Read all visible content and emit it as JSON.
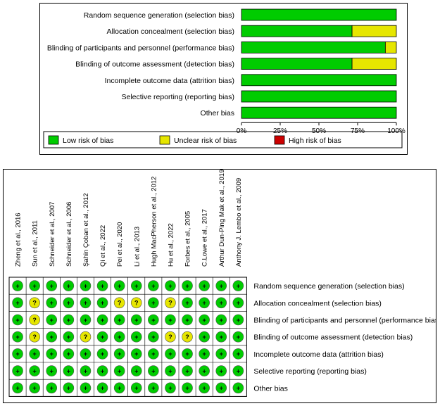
{
  "chart_data": [
    {
      "type": "bar",
      "stacked": true,
      "orientation": "horizontal",
      "title": "",
      "categories": [
        "Random sequence generation (selection bias)",
        "Allocation concealment (selection bias)",
        "Blinding of participants and personnel (performance bias)",
        "Blinding of outcome assessment (detection bias)",
        "Incomplete outcome data (attrition bias)",
        "Selective reporting (reporting bias)",
        "Other bias"
      ],
      "series": [
        {
          "name": "Low risk of bias",
          "color": "#00cc00",
          "values": [
            100,
            71.4,
            92.9,
            71.4,
            100,
            100,
            100
          ]
        },
        {
          "name": "Unclear risk of bias",
          "color": "#e6e600",
          "values": [
            0,
            28.6,
            7.1,
            28.6,
            0,
            0,
            0
          ]
        },
        {
          "name": "High risk of bias",
          "color": "#cc0000",
          "values": [
            0,
            0,
            0,
            0,
            0,
            0,
            0
          ]
        }
      ],
      "xlim": [
        0,
        100
      ],
      "xticks": [
        "0%",
        "25%",
        "50%",
        "75%",
        "100%"
      ],
      "legend": [
        "Low risk of bias",
        "Unclear risk of bias",
        "High risk of bias"
      ]
    },
    {
      "type": "table",
      "studies": [
        "Zheng et al., 2016",
        "Sun et al., 2011",
        "Schneider et al., 2007",
        "Schneider et al., 2006",
        "Şahin Çoban et al., 2012",
        "Qi et al., 2022",
        "Pei et al., 2020",
        "Li et al., 2013",
        "Hugh MacPherson et al., 2012",
        "Hu et al., 2022",
        "Forbes et al., 2005",
        "C.Lowe et al., 2017",
        "Arthur Dun-Ping Mak et al., 2019",
        "Anthony J. Lembo et al., 2009"
      ],
      "domains": [
        "Random sequence generation (selection bias)",
        "Allocation concealment (selection bias)",
        "Blinding of participants and personnel (performance bias)",
        "Blinding of outcome assessment (detection bias)",
        "Incomplete outcome data (attrition bias)",
        "Selective reporting (reporting bias)",
        "Other bias"
      ],
      "ratings": [
        [
          "+",
          "+",
          "+",
          "+",
          "+",
          "+",
          "+",
          "+",
          "+",
          "+",
          "+",
          "+",
          "+",
          "+"
        ],
        [
          "+",
          "?",
          "+",
          "+",
          "+",
          "+",
          "?",
          "?",
          "+",
          "?",
          "+",
          "+",
          "+",
          "+"
        ],
        [
          "+",
          "?",
          "+",
          "+",
          "+",
          "+",
          "+",
          "+",
          "+",
          "+",
          "+",
          "+",
          "+",
          "+"
        ],
        [
          "+",
          "?",
          "+",
          "+",
          "?",
          "+",
          "+",
          "+",
          "+",
          "?",
          "?",
          "+",
          "+",
          "+"
        ],
        [
          "+",
          "+",
          "+",
          "+",
          "+",
          "+",
          "+",
          "+",
          "+",
          "+",
          "+",
          "+",
          "+",
          "+"
        ],
        [
          "+",
          "+",
          "+",
          "+",
          "+",
          "+",
          "+",
          "+",
          "+",
          "+",
          "+",
          "+",
          "+",
          "+"
        ],
        [
          "+",
          "+",
          "+",
          "+",
          "+",
          "+",
          "+",
          "+",
          "+",
          "+",
          "+",
          "+",
          "+",
          "+"
        ]
      ],
      "symbol_colors": {
        "+": "#00cc00",
        "?": "#e6e600",
        "-": "#cc0000"
      }
    }
  ]
}
